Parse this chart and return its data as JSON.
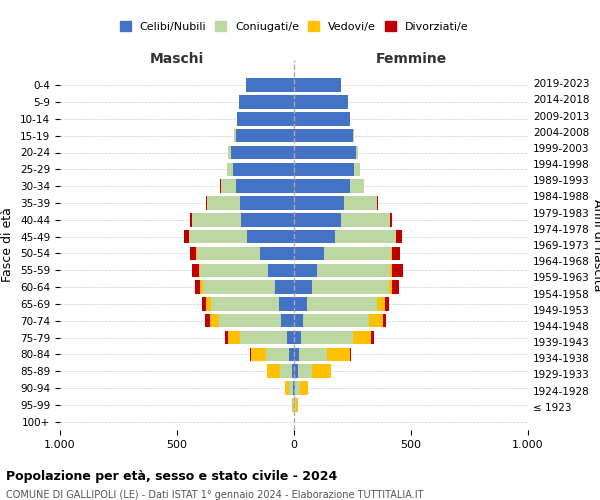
{
  "age_groups": [
    "100+",
    "95-99",
    "90-94",
    "85-89",
    "80-84",
    "75-79",
    "70-74",
    "65-69",
    "60-64",
    "55-59",
    "50-54",
    "45-49",
    "40-44",
    "35-39",
    "30-34",
    "25-29",
    "20-24",
    "15-19",
    "10-14",
    "5-9",
    "0-4"
  ],
  "birth_years": [
    "≤ 1923",
    "1924-1928",
    "1929-1933",
    "1934-1938",
    "1939-1943",
    "1944-1948",
    "1949-1953",
    "1954-1958",
    "1959-1963",
    "1964-1968",
    "1969-1973",
    "1974-1978",
    "1979-1983",
    "1984-1988",
    "1989-1993",
    "1994-1998",
    "1999-2003",
    "2004-2008",
    "2009-2013",
    "2014-2018",
    "2019-2023"
  ],
  "colors": {
    "celibi": "#4472c4",
    "coniugati": "#bdd7a3",
    "vedovi": "#ffc000",
    "divorziati": "#c00000"
  },
  "maschi": {
    "celibi": [
      0,
      2,
      5,
      10,
      20,
      30,
      55,
      65,
      80,
      110,
      145,
      200,
      225,
      230,
      250,
      260,
      270,
      250,
      245,
      235,
      205
    ],
    "coniugati": [
      0,
      3,
      15,
      50,
      100,
      200,
      265,
      290,
      310,
      290,
      270,
      250,
      210,
      140,
      60,
      25,
      10,
      5,
      0,
      0,
      0
    ],
    "vedovi": [
      0,
      5,
      20,
      55,
      65,
      50,
      40,
      20,
      10,
      5,
      5,
      0,
      0,
      0,
      0,
      0,
      0,
      0,
      0,
      0,
      0
    ],
    "divorziati": [
      0,
      0,
      0,
      0,
      5,
      15,
      20,
      18,
      25,
      30,
      25,
      18,
      10,
      8,
      5,
      0,
      0,
      0,
      0,
      0,
      0
    ]
  },
  "femmine": {
    "nubili": [
      0,
      2,
      5,
      15,
      20,
      30,
      40,
      55,
      75,
      100,
      130,
      175,
      200,
      215,
      240,
      255,
      265,
      250,
      240,
      230,
      200
    ],
    "coniugate": [
      0,
      5,
      20,
      60,
      120,
      220,
      280,
      300,
      330,
      310,
      285,
      260,
      210,
      140,
      60,
      25,
      10,
      5,
      0,
      0,
      0
    ],
    "vedove": [
      0,
      10,
      35,
      85,
      100,
      80,
      60,
      35,
      15,
      10,
      5,
      0,
      0,
      0,
      0,
      0,
      0,
      0,
      0,
      0,
      0
    ],
    "divorziate": [
      0,
      0,
      0,
      0,
      5,
      10,
      15,
      15,
      30,
      45,
      35,
      25,
      10,
      5,
      0,
      0,
      0,
      0,
      0,
      0,
      0
    ]
  },
  "title": "Popolazione per età, sesso e stato civile - 2024",
  "subtitle": "COMUNE DI GALLIPOLI (LE) - Dati ISTAT 1° gennaio 2024 - Elaborazione TUTTITALIA.IT",
  "ylabel_left": "Fasce di età",
  "ylabel_right": "Anni di nascita",
  "xlabel_left": "Maschi",
  "xlabel_right": "Femmine",
  "xlim": 1000,
  "legend_labels": [
    "Celibi/Nubili",
    "Coniugati/e",
    "Vedovi/e",
    "Divorziati/e"
  ],
  "background_color": "#ffffff",
  "grid_color": "#cccccc"
}
